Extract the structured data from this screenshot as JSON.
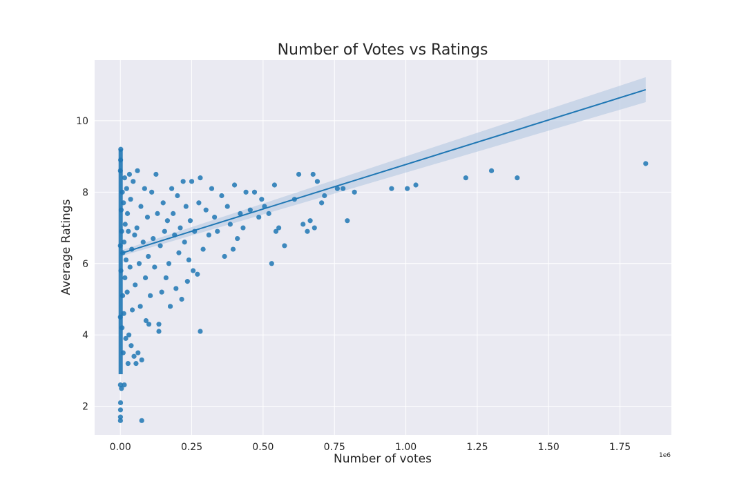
{
  "chart_data": {
    "type": "scatter",
    "title": "Number of Votes vs Ratings",
    "xlabel": "Number of votes",
    "ylabel": "Average Ratings",
    "x_offset_label": "1e6",
    "xlim": [
      -90000,
      1930000
    ],
    "ylim": [
      1.2,
      11.7
    ],
    "x_ticks": [
      {
        "value": 0,
        "label": "0.00"
      },
      {
        "value": 250000,
        "label": "0.25"
      },
      {
        "value": 500000,
        "label": "0.50"
      },
      {
        "value": 750000,
        "label": "0.75"
      },
      {
        "value": 1000000,
        "label": "1.00"
      },
      {
        "value": 1250000,
        "label": "1.25"
      },
      {
        "value": 1500000,
        "label": "1.50"
      },
      {
        "value": 1750000,
        "label": "1.75"
      }
    ],
    "y_ticks": [
      {
        "value": 2,
        "label": "2"
      },
      {
        "value": 4,
        "label": "4"
      },
      {
        "value": 6,
        "label": "6"
      },
      {
        "value": 8,
        "label": "8"
      },
      {
        "value": 10,
        "label": "10"
      }
    ],
    "grid": true,
    "colors": {
      "background": "#eaeaf2",
      "grid": "#ffffff",
      "points": "#1f77b4",
      "line": "#1f77b4",
      "band": "#b4c8e1"
    },
    "points": [
      [
        1840000,
        8.8
      ],
      [
        1390000,
        8.4
      ],
      [
        1300000,
        8.6
      ],
      [
        1210000,
        8.4
      ],
      [
        1035000,
        8.2
      ],
      [
        1005000,
        8.1
      ],
      [
        950000,
        8.1
      ],
      [
        820000,
        8.0
      ],
      [
        795000,
        7.2
      ],
      [
        780000,
        8.1
      ],
      [
        760000,
        8.1
      ],
      [
        715000,
        7.9
      ],
      [
        705000,
        7.7
      ],
      [
        690000,
        8.3
      ],
      [
        680000,
        7.0
      ],
      [
        675000,
        8.5
      ],
      [
        665000,
        7.2
      ],
      [
        655000,
        6.9
      ],
      [
        640000,
        7.1
      ],
      [
        625000,
        8.5
      ],
      [
        610000,
        7.8
      ],
      [
        575000,
        6.5
      ],
      [
        555000,
        7.0
      ],
      [
        545000,
        6.9
      ],
      [
        540000,
        8.2
      ],
      [
        530000,
        6.0
      ],
      [
        520000,
        7.4
      ],
      [
        505000,
        7.6
      ],
      [
        495000,
        7.8
      ],
      [
        485000,
        7.3
      ],
      [
        470000,
        8.0
      ],
      [
        455000,
        7.5
      ],
      [
        440000,
        8.0
      ],
      [
        430000,
        7.0
      ],
      [
        420000,
        7.4
      ],
      [
        410000,
        6.7
      ],
      [
        400000,
        8.2
      ],
      [
        395000,
        6.4
      ],
      [
        385000,
        7.1
      ],
      [
        375000,
        7.6
      ],
      [
        365000,
        6.2
      ],
      [
        355000,
        7.9
      ],
      [
        340000,
        6.9
      ],
      [
        330000,
        7.3
      ],
      [
        320000,
        8.1
      ],
      [
        310000,
        6.8
      ],
      [
        300000,
        7.5
      ],
      [
        290000,
        6.4
      ],
      [
        280000,
        4.1
      ],
      [
        280000,
        8.4
      ],
      [
        275000,
        7.7
      ],
      [
        270000,
        5.7
      ],
      [
        260000,
        6.9
      ],
      [
        255000,
        5.8
      ],
      [
        250000,
        8.3
      ],
      [
        245000,
        7.2
      ],
      [
        240000,
        6.1
      ],
      [
        235000,
        5.5
      ],
      [
        230000,
        7.6
      ],
      [
        225000,
        6.6
      ],
      [
        220000,
        8.3
      ],
      [
        215000,
        5.0
      ],
      [
        210000,
        7.0
      ],
      [
        205000,
        6.3
      ],
      [
        200000,
        7.9
      ],
      [
        195000,
        5.3
      ],
      [
        190000,
        6.8
      ],
      [
        185000,
        7.4
      ],
      [
        180000,
        8.1
      ],
      [
        175000,
        4.8
      ],
      [
        170000,
        6.0
      ],
      [
        165000,
        7.2
      ],
      [
        160000,
        5.6
      ],
      [
        155000,
        6.9
      ],
      [
        150000,
        7.7
      ],
      [
        145000,
        5.2
      ],
      [
        140000,
        6.5
      ],
      [
        135000,
        4.1
      ],
      [
        135000,
        4.3
      ],
      [
        130000,
        7.4
      ],
      [
        125000,
        8.5
      ],
      [
        120000,
        5.9
      ],
      [
        115000,
        6.7
      ],
      [
        110000,
        8.0
      ],
      [
        105000,
        5.1
      ],
      [
        100000,
        4.3
      ],
      [
        98000,
        6.2
      ],
      [
        95000,
        7.3
      ],
      [
        90000,
        4.4
      ],
      [
        88000,
        5.6
      ],
      [
        85000,
        8.1
      ],
      [
        80000,
        6.6
      ],
      [
        75000,
        1.6
      ],
      [
        75000,
        3.3
      ],
      [
        72000,
        7.6
      ],
      [
        70000,
        4.8
      ],
      [
        66000,
        6.0
      ],
      [
        62000,
        3.5
      ],
      [
        60000,
        8.6
      ],
      [
        58000,
        7.0
      ],
      [
        55000,
        3.2
      ],
      [
        52000,
        5.4
      ],
      [
        50000,
        6.8
      ],
      [
        48000,
        3.4
      ],
      [
        45000,
        8.3
      ],
      [
        42000,
        4.7
      ],
      [
        40000,
        6.4
      ],
      [
        38000,
        3.7
      ],
      [
        36000,
        7.8
      ],
      [
        34000,
        5.9
      ],
      [
        32000,
        8.5
      ],
      [
        30000,
        4.0
      ],
      [
        28000,
        6.9
      ],
      [
        27000,
        3.2
      ],
      [
        25000,
        7.4
      ],
      [
        24000,
        5.2
      ],
      [
        22000,
        8.1
      ],
      [
        20000,
        6.1
      ],
      [
        19000,
        3.9
      ],
      [
        17000,
        7.1
      ],
      [
        16000,
        5.6
      ],
      [
        15000,
        8.4
      ],
      [
        14000,
        2.6
      ],
      [
        13000,
        6.6
      ],
      [
        12000,
        4.6
      ],
      [
        11000,
        7.7
      ],
      [
        10000,
        3.5
      ],
      [
        9000,
        6.3
      ],
      [
        8000,
        5.1
      ],
      [
        7000,
        8.0
      ],
      [
        6000,
        4.2
      ],
      [
        5000,
        6.9
      ],
      [
        4000,
        2.5
      ],
      [
        3000,
        7.5
      ],
      [
        2000,
        5.8
      ],
      [
        1500,
        9.2
      ],
      [
        1000,
        8.9
      ],
      [
        800,
        2.1
      ],
      [
        600,
        1.9
      ],
      [
        500,
        1.7
      ],
      [
        400,
        1.6
      ],
      [
        300,
        2.6
      ],
      [
        200,
        8.6
      ],
      [
        100,
        4.5
      ],
      [
        0,
        6.5
      ]
    ],
    "regression": {
      "x": [
        0,
        1840000
      ],
      "y": [
        6.28,
        10.87
      ],
      "ci_low": [
        6.2,
        10.52
      ],
      "ci_high": [
        6.36,
        11.22
      ]
    }
  }
}
